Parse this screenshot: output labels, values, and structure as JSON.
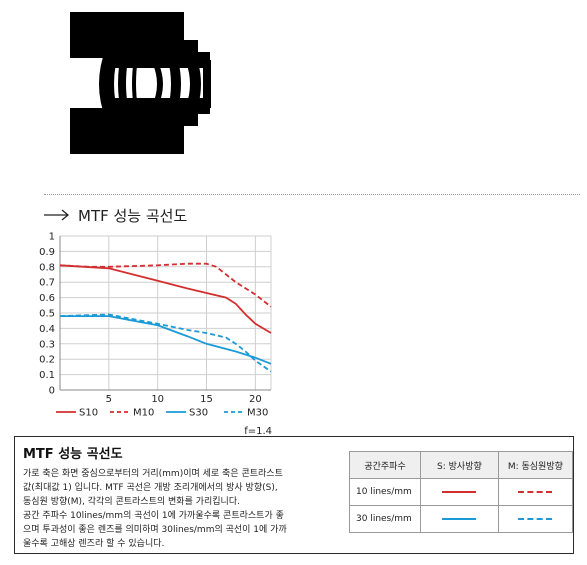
{
  "section": {
    "title": "MTF 성능 곡선도"
  },
  "colors": {
    "red": "#d32f2f",
    "blue": "#1a9ad6",
    "grid": "#cfcfcf",
    "text": "#222222"
  },
  "lens_icon": "lens-cross-section-illustration",
  "chart_data": {
    "type": "line",
    "xlim": [
      0,
      21.6
    ],
    "ylim": [
      0,
      1
    ],
    "x_ticks": [
      "5",
      "10",
      "15",
      "20"
    ],
    "y_ticks": [
      "0",
      "0.1",
      "0.2",
      "0.3",
      "0.4",
      "0.5",
      "0.6",
      "0.7",
      "0.8",
      "0.9",
      "1"
    ],
    "grid": true,
    "legend_position": "bottom",
    "annotation": "f=1.4",
    "series": [
      {
        "name": "S10",
        "color": "#d32f2f",
        "dash": false,
        "x": [
          0,
          5,
          10,
          13,
          15,
          17,
          18,
          19,
          20,
          21.6
        ],
        "y": [
          0.81,
          0.79,
          0.71,
          0.66,
          0.63,
          0.6,
          0.56,
          0.49,
          0.43,
          0.37
        ]
      },
      {
        "name": "M10",
        "color": "#d32f2f",
        "dash": true,
        "x": [
          0,
          3,
          5,
          10,
          13,
          15,
          16,
          17,
          18,
          19,
          20,
          21.6
        ],
        "y": [
          0.81,
          0.8,
          0.8,
          0.81,
          0.82,
          0.82,
          0.8,
          0.75,
          0.7,
          0.66,
          0.62,
          0.54
        ]
      },
      {
        "name": "S30",
        "color": "#1a9ad6",
        "dash": false,
        "x": [
          0,
          5,
          10,
          13,
          15,
          18,
          20,
          21.6
        ],
        "y": [
          0.48,
          0.48,
          0.42,
          0.35,
          0.3,
          0.25,
          0.21,
          0.17
        ]
      },
      {
        "name": "M30",
        "color": "#1a9ad6",
        "dash": true,
        "x": [
          0,
          5,
          10,
          13,
          15,
          17,
          18,
          19,
          20,
          21.6
        ],
        "y": [
          0.48,
          0.49,
          0.43,
          0.39,
          0.37,
          0.34,
          0.3,
          0.25,
          0.19,
          0.12
        ]
      }
    ]
  },
  "info": {
    "title": "MTF 성능 곡선도",
    "desc": [
      "가로 축은 화면 중심으로부터의 거리(mm)이며 세로 축은 콘트라스트",
      "값(최대값 1) 입니다. MTF 곡선은 개방 조리개에서의 방사 방향(S),",
      "동심원 방향(M), 각각의 콘트라스트의 변화를 가리킵니다.",
      "공간 주파수 10lines/mm의 곡선이 1에 가까울수록 콘트라스트가 좋",
      "으며 투과성이 좋은 렌즈를 의미하며 30lines/mm의 곡선이 1에 가까",
      "울수록 고해상 렌즈라 할 수 있습니다."
    ],
    "table": {
      "headers": [
        "공간주파수",
        "S: 방사방향",
        "M: 동심원방향"
      ],
      "rows": [
        {
          "label": "10 lines/mm",
          "color": "#d32f2f"
        },
        {
          "label": "30 lines/mm",
          "color": "#1a9ad6"
        }
      ]
    }
  }
}
